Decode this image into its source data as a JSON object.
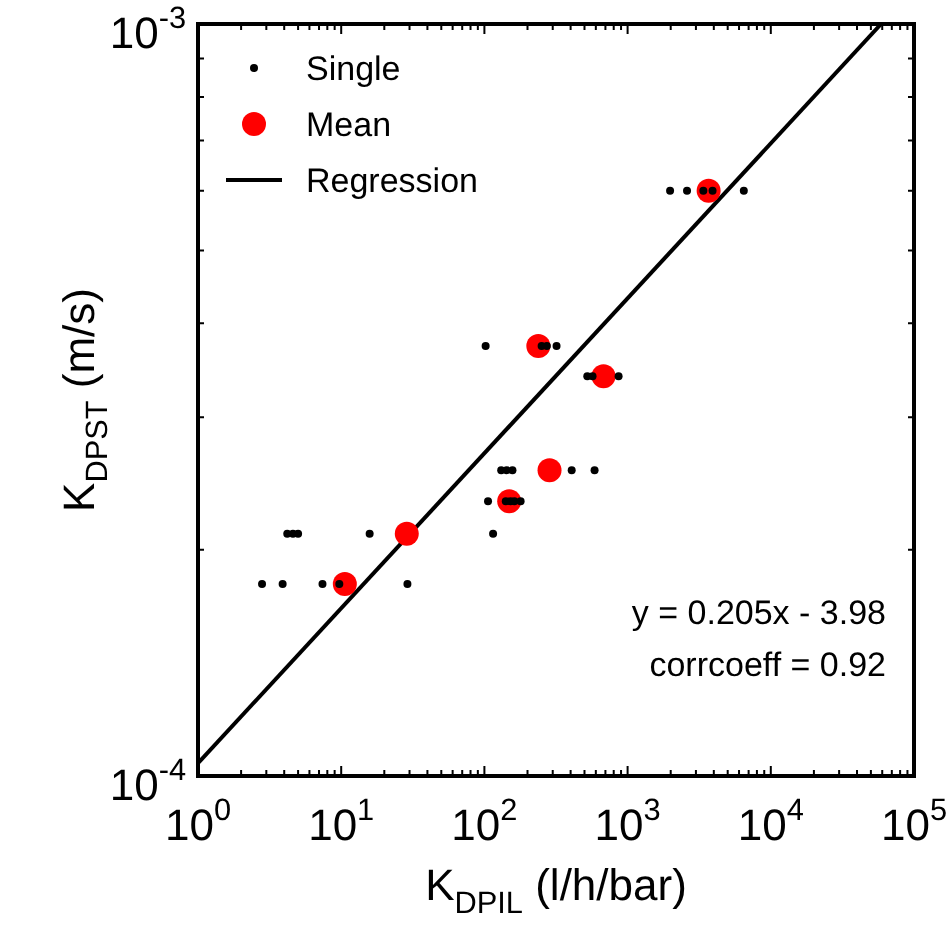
{
  "chart_data": {
    "type": "scatter",
    "xlabel": "K$_{DPIL}$ (l/h/bar)",
    "ylabel": "K$_{DPST}$ (m/s)",
    "log": "xy",
    "xlim": [
      1,
      100000
    ],
    "ylim": [
      0.0001,
      0.001
    ],
    "xticks": [
      {
        "value": 1,
        "label": "10$^{0}$"
      },
      {
        "value": 2,
        "label": null
      },
      {
        "value": 3,
        "label": null
      },
      {
        "value": 4,
        "label": null
      },
      {
        "value": 5,
        "label": null
      },
      {
        "value": 6,
        "label": null
      },
      {
        "value": 7,
        "label": null
      },
      {
        "value": 8,
        "label": null
      },
      {
        "value": 9,
        "label": null
      },
      {
        "value": 10,
        "label": "10$^{1}$"
      },
      {
        "value": 20,
        "label": null
      },
      {
        "value": 30,
        "label": null
      },
      {
        "value": 40,
        "label": null
      },
      {
        "value": 50,
        "label": null
      },
      {
        "value": 60,
        "label": null
      },
      {
        "value": 70,
        "label": null
      },
      {
        "value": 80,
        "label": null
      },
      {
        "value": 90,
        "label": null
      },
      {
        "value": 100,
        "label": "10$^{2}$"
      },
      {
        "value": 200,
        "label": null
      },
      {
        "value": 300,
        "label": null
      },
      {
        "value": 400,
        "label": null
      },
      {
        "value": 500,
        "label": null
      },
      {
        "value": 600,
        "label": null
      },
      {
        "value": 700,
        "label": null
      },
      {
        "value": 800,
        "label": null
      },
      {
        "value": 900,
        "label": null
      },
      {
        "value": 1000,
        "label": "10$^{3}$"
      },
      {
        "value": 2000,
        "label": null
      },
      {
        "value": 3000,
        "label": null
      },
      {
        "value": 4000,
        "label": null
      },
      {
        "value": 5000,
        "label": null
      },
      {
        "value": 6000,
        "label": null
      },
      {
        "value": 7000,
        "label": null
      },
      {
        "value": 8000,
        "label": null
      },
      {
        "value": 9000,
        "label": null
      },
      {
        "value": 10000,
        "label": "10$^{4}$"
      },
      {
        "value": 20000,
        "label": null
      },
      {
        "value": 30000,
        "label": null
      },
      {
        "value": 40000,
        "label": null
      },
      {
        "value": 50000,
        "label": null
      },
      {
        "value": 60000,
        "label": null
      },
      {
        "value": 70000,
        "label": null
      },
      {
        "value": 80000,
        "label": null
      },
      {
        "value": 90000,
        "label": null
      },
      {
        "value": 100000,
        "label": "10$^{5}$"
      }
    ],
    "yticks": [
      {
        "value": 0.0001,
        "label": "10$^{-4}$"
      },
      {
        "value": 0.0002,
        "label": null
      },
      {
        "value": 0.0003,
        "label": null
      },
      {
        "value": 0.0004,
        "label": null
      },
      {
        "value": 0.0005,
        "label": null
      },
      {
        "value": 0.0006,
        "label": null
      },
      {
        "value": 0.0007,
        "label": null
      },
      {
        "value": 0.0008,
        "label": null
      },
      {
        "value": 0.0009,
        "label": null
      },
      {
        "value": 0.001,
        "label": "10$^{-3}$"
      }
    ],
    "grid": false,
    "legend": "top left",
    "marker": "circle",
    "series": [
      {
        "name": "Single",
        "color": "#000000",
        "x": [
          2.8,
          3.9,
          7.4,
          9.7,
          29,
          4.2,
          4.6,
          5.0,
          15.8,
          115,
          106,
          141,
          152,
          162,
          179,
          131,
          143,
          157,
          407,
          588,
          523,
          569,
          865,
          102,
          251,
          273,
          319,
          1980,
          2600,
          3380,
          3920,
          6480
        ],
        "values": [
          0.00018,
          0.00018,
          0.00018,
          0.00018,
          0.00018,
          0.00021,
          0.00021,
          0.00021,
          0.00021,
          0.00021,
          0.000232,
          0.000232,
          0.000232,
          0.000232,
          0.000232,
          0.000255,
          0.000255,
          0.000255,
          0.000255,
          0.000255,
          0.00034,
          0.00034,
          0.00034,
          0.000373,
          0.000373,
          0.000373,
          0.000373,
          0.0006,
          0.0006,
          0.0006,
          0.0006,
          0.0006
        ]
      },
      {
        "name": "Mean",
        "color": "#ff0000",
        "x": [
          10.6,
          28.7,
          149,
          285,
          679,
          238,
          3680
        ],
        "values": [
          0.00018,
          0.00021,
          0.000232,
          0.000255,
          0.00034,
          0.000373,
          0.0006
        ]
      },
      {
        "name": "Regression",
        "type": "line",
        "marker": "none",
        "color": "#000000",
        "x": [
          1,
          58900
        ],
        "values": [
          0.000104,
          0.001
        ]
      }
    ],
    "annotations": [
      "y = 0.205x - 3.98",
      "corrcoeff = 0.92"
    ]
  }
}
